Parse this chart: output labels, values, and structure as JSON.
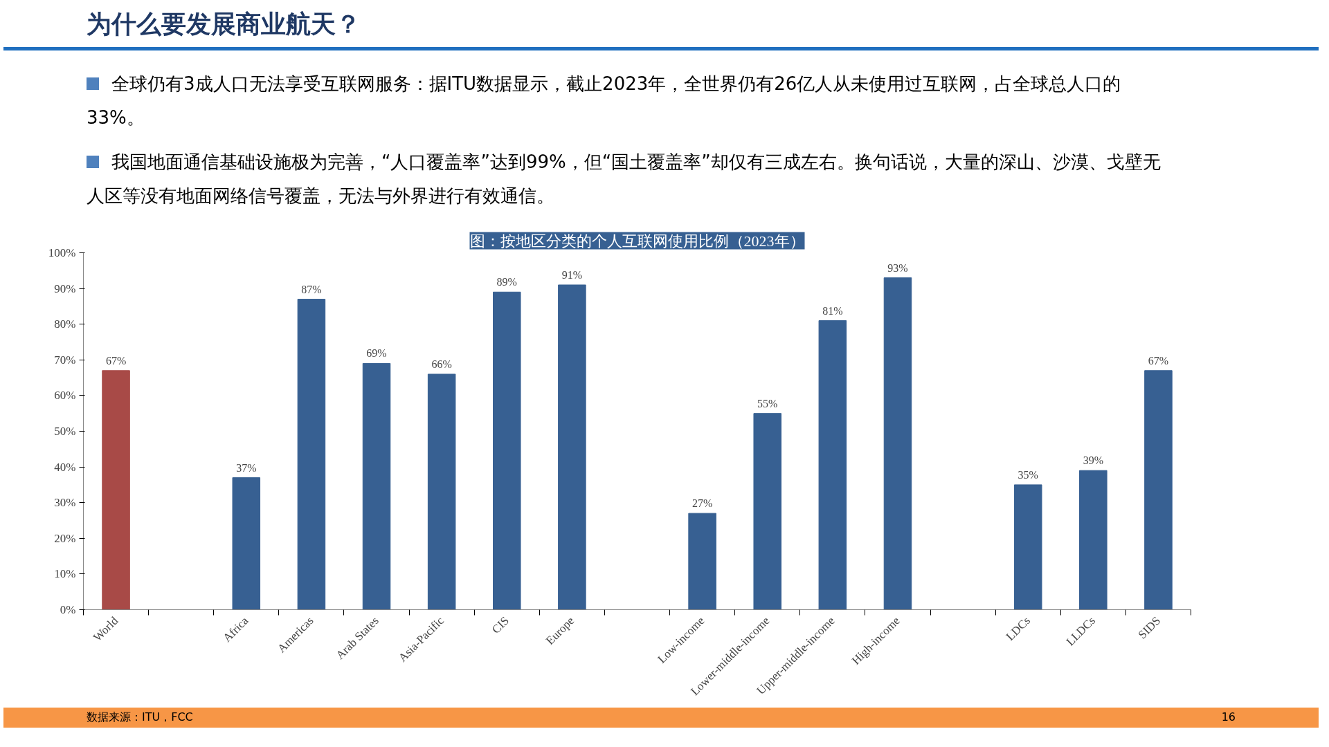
{
  "chart_data": {
    "type": "bar",
    "title": "为什么要发展商业航天？",
    "subtitle": "图：按地区分类的个人互联网使用比例（2023年）",
    "categories": [
      "World",
      null,
      "Africa",
      "Americas",
      "Arab States",
      "Asia-Pacific",
      "CIS",
      "Europe",
      null,
      "Low-income",
      "Lower-middle-income",
      "Upper-middle-income",
      "High-income",
      null,
      "LDCs",
      "LLDCs",
      "SIDS"
    ],
    "values": [
      67,
      null,
      37,
      87,
      69,
      66,
      89,
      91,
      null,
      27,
      55,
      81,
      93,
      null,
      35,
      39,
      67
    ],
    "value_labels": [
      "67%",
      null,
      "37%",
      "87%",
      "69%",
      "66%",
      "89%",
      "91%",
      null,
      "27%",
      "55%",
      "81%",
      "93%",
      null,
      "35%",
      "39%",
      "67%"
    ],
    "colors": [
      "#a84a47",
      null,
      "#376092",
      "#376092",
      "#376092",
      "#376092",
      "#376092",
      "#376092",
      null,
      "#376092",
      "#376092",
      "#376092",
      "#376092",
      null,
      "#376092",
      "#376092",
      "#376092"
    ],
    "ylim": [
      0,
      100
    ],
    "yticks": [
      {
        "value": 0,
        "label": "0%"
      },
      {
        "value": 10,
        "label": "10%"
      },
      {
        "value": 20,
        "label": "20%"
      },
      {
        "value": 30,
        "label": "30%"
      },
      {
        "value": 40,
        "label": "40%"
      },
      {
        "value": 50,
        "label": "50%"
      },
      {
        "value": 60,
        "label": "60%"
      },
      {
        "value": 70,
        "label": "70%"
      },
      {
        "value": 80,
        "label": "80%"
      },
      {
        "value": 90,
        "label": "90%"
      },
      {
        "value": 100,
        "label": "100%"
      }
    ],
    "grid": false,
    "annotations": [
      "全球仍有3成人口无法享受互联网服务：据ITU数据显示，截止2023年，全世界仍有26亿人从未使用过互联网，占全球总人口的33%。",
      "我国地面通信基础设施极为完善，“人口覆盖率”达到99%，但“国土覆盖率”却仅有三成左右。换句话说，大量的深山、沙漠、戈壁无人区等没有地面网络信号覆盖，无法与外界进行有效通信。",
      "数据来源：ITU，FCC",
      "16"
    ]
  }
}
